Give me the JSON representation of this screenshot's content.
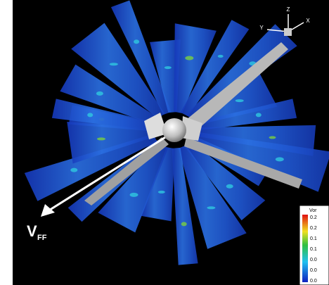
{
  "triad": {
    "z": "Z",
    "y": "Y",
    "x": "X"
  },
  "velocity_label": {
    "main": "V",
    "subscript": "FF"
  },
  "legend": {
    "title": "Vor",
    "labels": [
      "0.2",
      "0.2",
      "0.1",
      "0.1",
      "0.0",
      "0.0",
      "0.0"
    ]
  }
}
